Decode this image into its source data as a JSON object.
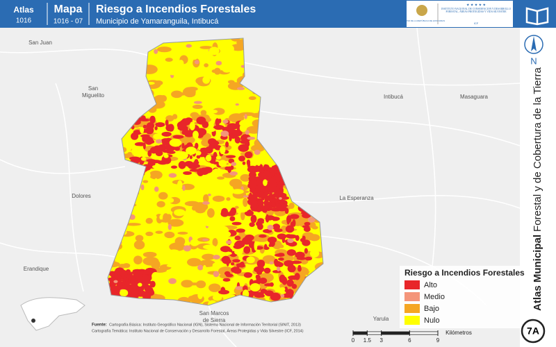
{
  "header": {
    "atlas_label": "Atlas",
    "atlas_code": "1016",
    "map_label": "Mapa",
    "map_code": "1016 - 07",
    "title": "Riesgo a Incendios Forestales",
    "subtitle": "Municipio de Yamaranguila, Intibucá",
    "logo": {
      "gov": "GOBIERNO DE LA REPÚBLICA DE HONDURAS",
      "institute": "INSTITUTO NACIONAL DE CONSERVACIÓN Y DESARROLLO FORESTAL, ÁREAS PROTEGIDAS Y VIDA SILVESTRE",
      "acronym": "ICF"
    }
  },
  "places": [
    {
      "lines": [
        "San Juan"
      ]
    },
    {
      "lines": [
        "San",
        "Miguelito"
      ]
    },
    {
      "lines": [
        "Intibucá"
      ]
    },
    {
      "lines": [
        "Masaguara"
      ]
    },
    {
      "lines": [
        "Dolores"
      ]
    },
    {
      "lines": [
        "La Esperanza"
      ]
    },
    {
      "lines": [
        "Erandique"
      ]
    },
    {
      "lines": [
        "San Marcos",
        "de Sierra"
      ]
    },
    {
      "lines": [
        "Yarula"
      ]
    }
  ],
  "legend": {
    "title": "Riesgo a Incendios Forestales",
    "items": [
      {
        "label": "Alto",
        "color": "#e8262a"
      },
      {
        "label": "Medio",
        "color": "#f4957a"
      },
      {
        "label": "Bajo",
        "color": "#f5a623"
      },
      {
        "label": "Nulo",
        "color": "#ffff00"
      }
    ]
  },
  "scale": {
    "ticks": [
      0,
      1.5,
      3,
      6,
      9
    ],
    "unit": "Kilómetros"
  },
  "sidebar": {
    "title_bold": "Atlas Municipal",
    "title_rest": "Forestal y de Cobertura de la Tierra",
    "north": "N",
    "page": "7A"
  },
  "source": {
    "label": "Fuente:",
    "lines": [
      "Cartografía Básica: Instituto Geográfico Nacional (IGN), Sistema Nacional de Información Territorial (SINIT, 2013)",
      "Cartografía Temática: Instituto Nacional de Conservación y Desarrollo Forestal, Áreas Protegidas y Vida Silvestre (ICF, 2014)"
    ]
  }
}
